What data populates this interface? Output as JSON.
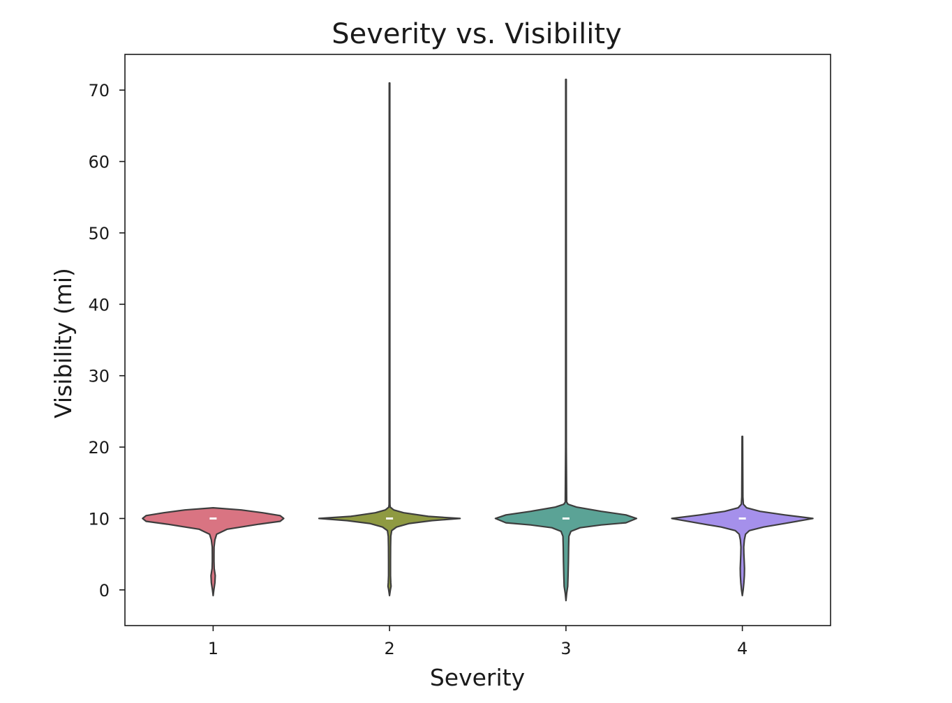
{
  "chart_data": {
    "type": "violin",
    "title": "Severity vs. Visibility",
    "xlabel": "Severity",
    "ylabel": "Visibility (mi)",
    "categories": [
      "1",
      "2",
      "3",
      "4"
    ],
    "ylim": [
      -5,
      75
    ],
    "yticks": [
      0,
      10,
      20,
      30,
      40,
      50,
      60,
      70
    ],
    "grid": false,
    "series": [
      {
        "name": "1",
        "color": "#d97482",
        "median": 10,
        "q1": 10,
        "q3": 10,
        "min": -0.8,
        "max": 11.5,
        "profile": [
          [
            -0.8,
            0.0
          ],
          [
            0,
            0.01
          ],
          [
            1,
            0.025
          ],
          [
            2,
            0.03
          ],
          [
            3,
            0.015
          ],
          [
            4,
            0.012
          ],
          [
            5,
            0.012
          ],
          [
            6,
            0.013
          ],
          [
            7,
            0.025
          ],
          [
            7.8,
            0.05
          ],
          [
            8.5,
            0.2
          ],
          [
            9.2,
            0.65
          ],
          [
            9.6,
            0.95
          ],
          [
            10,
            1.0
          ],
          [
            10.4,
            0.95
          ],
          [
            10.8,
            0.7
          ],
          [
            11.2,
            0.4
          ],
          [
            11.5,
            0.0
          ]
        ]
      },
      {
        "name": "2",
        "color": "#8f9a42",
        "median": 10,
        "q1": 10,
        "q3": 10,
        "min": -0.8,
        "max": 71,
        "profile": [
          [
            -0.8,
            0.0
          ],
          [
            0,
            0.012
          ],
          [
            0.5,
            0.022
          ],
          [
            1,
            0.018
          ],
          [
            2,
            0.014
          ],
          [
            4,
            0.014
          ],
          [
            6,
            0.015
          ],
          [
            7.5,
            0.018
          ],
          [
            8.3,
            0.03
          ],
          [
            8.8,
            0.1
          ],
          [
            9.3,
            0.28
          ],
          [
            9.7,
            0.6
          ],
          [
            10,
            1.0
          ],
          [
            10.3,
            0.55
          ],
          [
            10.8,
            0.2
          ],
          [
            11.2,
            0.06
          ],
          [
            11.6,
            0.01
          ],
          [
            12,
            0.006
          ],
          [
            20,
            0.005
          ],
          [
            71,
            0.004
          ]
        ]
      },
      {
        "name": "3",
        "color": "#5ba396",
        "median": 10,
        "q1": 10,
        "q3": 10,
        "min": -1.5,
        "max": 71.5,
        "profile": [
          [
            -1.5,
            0.0
          ],
          [
            -0.5,
            0.01
          ],
          [
            0.5,
            0.025
          ],
          [
            2,
            0.03
          ],
          [
            4,
            0.035
          ],
          [
            6,
            0.038
          ],
          [
            7.5,
            0.042
          ],
          [
            8.2,
            0.07
          ],
          [
            8.7,
            0.2
          ],
          [
            9.1,
            0.5
          ],
          [
            9.4,
            0.85
          ],
          [
            10,
            1.0
          ],
          [
            10.5,
            0.85
          ],
          [
            11,
            0.5
          ],
          [
            11.6,
            0.15
          ],
          [
            12,
            0.03
          ],
          [
            12.3,
            0.01
          ],
          [
            20,
            0.005
          ],
          [
            71.5,
            0.004
          ]
        ]
      },
      {
        "name": "4",
        "color": "#a590eb",
        "median": 10,
        "q1": 10,
        "q3": 10,
        "min": -0.8,
        "max": 21.5,
        "profile": [
          [
            -0.8,
            0.0
          ],
          [
            0,
            0.012
          ],
          [
            1,
            0.022
          ],
          [
            2,
            0.028
          ],
          [
            3,
            0.03
          ],
          [
            4,
            0.026
          ],
          [
            5,
            0.022
          ],
          [
            6,
            0.02
          ],
          [
            7,
            0.028
          ],
          [
            7.8,
            0.045
          ],
          [
            8.3,
            0.1
          ],
          [
            8.8,
            0.3
          ],
          [
            9.3,
            0.6
          ],
          [
            10,
            1.0
          ],
          [
            10.5,
            0.6
          ],
          [
            11,
            0.25
          ],
          [
            11.5,
            0.06
          ],
          [
            12,
            0.015
          ],
          [
            13,
            0.008
          ],
          [
            21.5,
            0.004
          ]
        ]
      }
    ]
  }
}
